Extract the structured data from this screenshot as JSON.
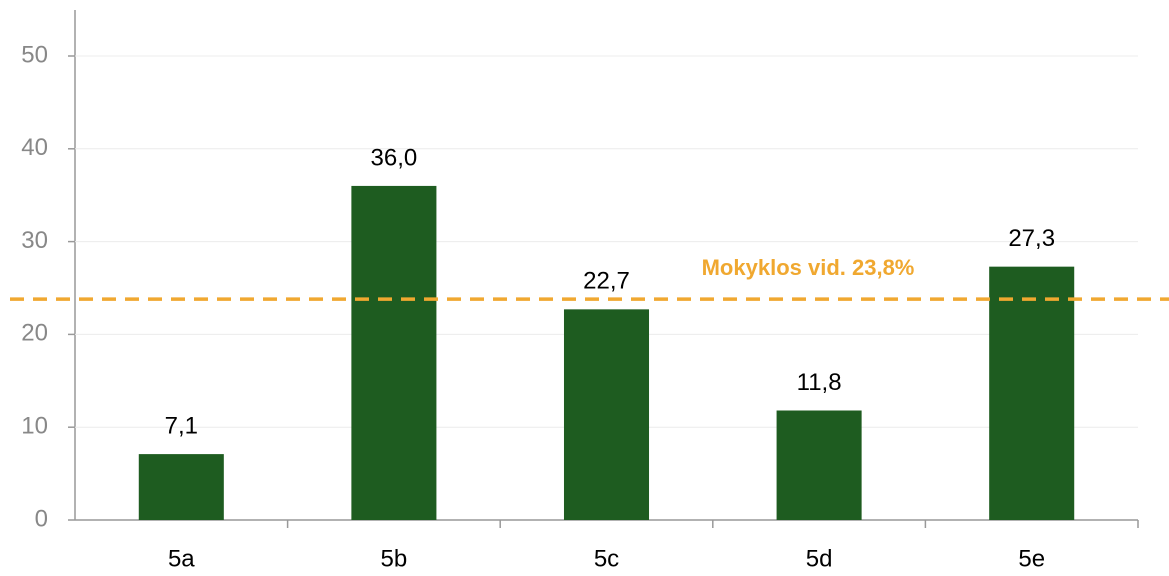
{
  "chart_data": {
    "type": "bar",
    "categories": [
      "5a",
      "5b",
      "5c",
      "5d",
      "5e"
    ],
    "values": [
      7.1,
      36.0,
      22.7,
      11.8,
      27.3
    ],
    "value_labels": [
      "7,1",
      "36,0",
      "22,7",
      "11,8",
      "27,3"
    ],
    "color": "#1e5c20",
    "ylim": [
      0,
      50
    ],
    "yticks": [
      0,
      10,
      20,
      30,
      40,
      50
    ],
    "grid": true,
    "reference_line": {
      "value": 23.8,
      "label": "Mokyklos vid. 23,8%",
      "color": "#f0a830"
    }
  }
}
